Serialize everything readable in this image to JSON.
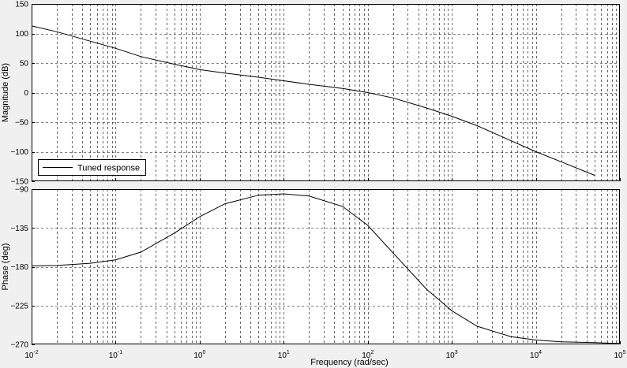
{
  "colors": {
    "figure_bg": "#f0f0f0",
    "axes_bg": "#ffffff",
    "line": "#000000",
    "grid": "#000000"
  },
  "legend": {
    "label": "Tuned response",
    "position": "bottom-left"
  },
  "xaxis": {
    "label": "Frequency  (rad/sec)",
    "scale": "log",
    "range": [
      0.01,
      100000
    ],
    "ticks": [
      {
        "value": 0.01,
        "base": "10",
        "exp": "-2"
      },
      {
        "value": 0.1,
        "base": "10",
        "exp": "-1"
      },
      {
        "value": 1,
        "base": "10",
        "exp": "0"
      },
      {
        "value": 10,
        "base": "10",
        "exp": "1"
      },
      {
        "value": 100,
        "base": "10",
        "exp": "2"
      },
      {
        "value": 1000,
        "base": "10",
        "exp": "3"
      },
      {
        "value": 10000,
        "base": "10",
        "exp": "4"
      },
      {
        "value": 100000,
        "base": "10",
        "exp": "5"
      }
    ]
  },
  "chart_data": [
    {
      "type": "line",
      "ylabel": "Magnitude (dB)",
      "xscale": "log",
      "xlim": [
        0.01,
        100000
      ],
      "ylim": [
        -150,
        150
      ],
      "yticks": [
        {
          "value": 150,
          "label": "150"
        },
        {
          "value": 100,
          "label": "100"
        },
        {
          "value": 50,
          "label": "50"
        },
        {
          "value": 0,
          "label": "0"
        },
        {
          "value": -50,
          "label": "−50"
        },
        {
          "value": -100,
          "label": "−100"
        },
        {
          "value": -150,
          "label": "−150"
        }
      ],
      "grid": true,
      "series": [
        {
          "name": "Tuned response",
          "x": [
            0.01,
            0.02,
            0.05,
            0.1,
            0.2,
            0.5,
            1,
            2,
            5,
            10,
            20,
            50,
            100,
            200,
            500,
            1000,
            2000,
            5000,
            10000,
            20000,
            50000
          ],
          "y": [
            113,
            103,
            87,
            75,
            61,
            48,
            39,
            33,
            26,
            20,
            14,
            7,
            0,
            -9,
            -26,
            -40,
            -56,
            -81,
            -100,
            -117,
            -140
          ]
        }
      ]
    },
    {
      "type": "line",
      "ylabel": "Phase (deg)",
      "xlabel": "Frequency  (rad/sec)",
      "xscale": "log",
      "xlim": [
        0.01,
        100000
      ],
      "ylim": [
        -270,
        -90
      ],
      "yticks": [
        {
          "value": -90,
          "label": "−90"
        },
        {
          "value": -135,
          "label": "−135"
        },
        {
          "value": -180,
          "label": "−180"
        },
        {
          "value": -225,
          "label": "−225"
        },
        {
          "value": -270,
          "label": "−270"
        }
      ],
      "grid": true,
      "series": [
        {
          "name": "Tuned response",
          "x": [
            0.01,
            0.02,
            0.05,
            0.1,
            0.2,
            0.5,
            1,
            2,
            5,
            10,
            20,
            50,
            100,
            200,
            500,
            1000,
            2000,
            5000,
            10000,
            20000,
            50000,
            100000
          ],
          "y": [
            -179,
            -178.5,
            -176,
            -172,
            -163,
            -141,
            -122,
            -107,
            -97,
            -95.5,
            -98,
            -110,
            -132,
            -164,
            -206,
            -231,
            -249,
            -261,
            -265,
            -267,
            -268,
            -269
          ]
        }
      ]
    }
  ]
}
